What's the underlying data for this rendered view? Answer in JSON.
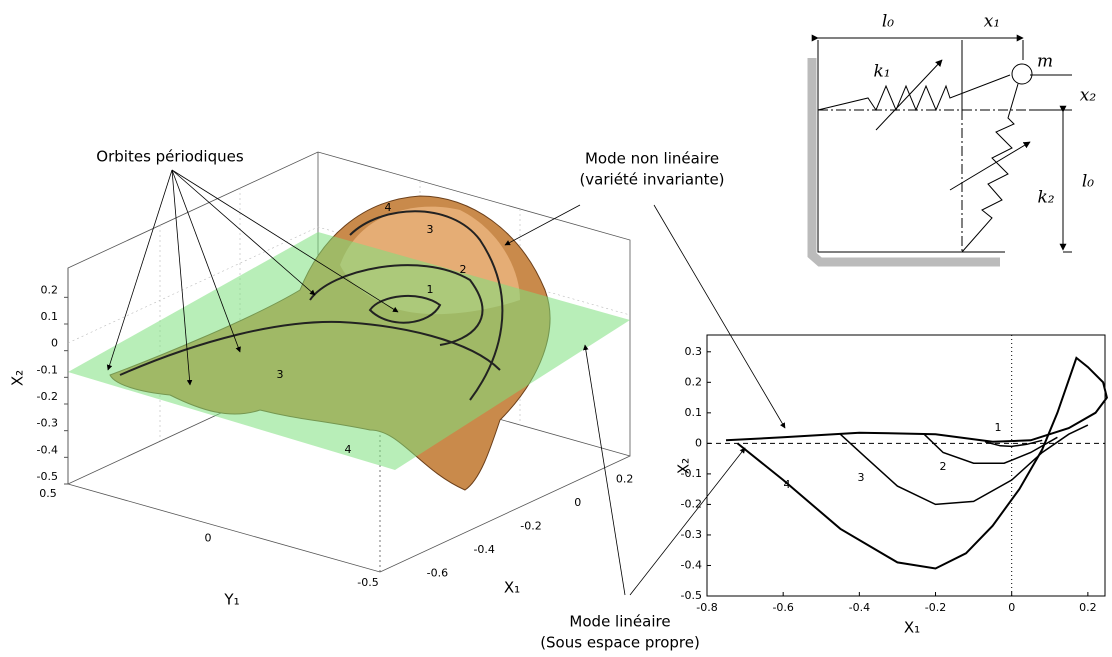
{
  "chart_data": [
    {
      "type": "surface",
      "zlabel": "X₂",
      "ylabel": "Y₁",
      "xlabel": "X₁",
      "zlim": [
        -0.5,
        0.25
      ],
      "zticks": [
        0.2,
        0.1,
        0,
        -0.1,
        -0.2,
        -0.3,
        -0.4,
        -0.5
      ],
      "ylim": [
        -0.5,
        0.5
      ],
      "yticks": [
        0.5,
        0,
        -0.5
      ],
      "xlim": [
        -0.7,
        0.3
      ],
      "xticks": [
        0.2,
        0,
        -0.2,
        -0.4,
        -0.6
      ],
      "curve_labels": [
        "4",
        "3",
        "2",
        "1",
        "3",
        "4"
      ]
    },
    {
      "type": "line",
      "xlabel": "X₁",
      "ylabel": "X₂",
      "xlim": [
        -0.8,
        0.245
      ],
      "xticks": [
        -0.8,
        -0.6,
        -0.4,
        -0.2,
        0,
        0.2
      ],
      "ylim": [
        -0.5,
        0.355
      ],
      "yticks": [
        0.3,
        0.2,
        0.1,
        0,
        -0.1,
        -0.2,
        -0.3,
        -0.4,
        -0.5
      ],
      "series": [
        {
          "name": "4",
          "color": "#000000",
          "x": [
            -0.75,
            -0.6,
            -0.4,
            -0.2,
            -0.05,
            0.05,
            0.15,
            0.22,
            0.25,
            0.24,
            0.2,
            0.17,
            0.12,
            0.08,
            0.02,
            -0.05,
            -0.12,
            -0.2,
            -0.3,
            -0.45,
            -0.6,
            -0.72
          ],
          "values": [
            0.01,
            0.02,
            0.035,
            0.03,
            0.005,
            0.01,
            0.05,
            0.1,
            0.15,
            0.2,
            0.25,
            0.28,
            0.1,
            -0.02,
            -0.15,
            -0.27,
            -0.36,
            -0.41,
            -0.39,
            -0.28,
            -0.12,
            0.0
          ]
        },
        {
          "name": "3",
          "color": "#000000",
          "x": [
            -0.45,
            -0.38,
            -0.3,
            -0.2,
            -0.1,
            0.0,
            0.08,
            0.15,
            0.2
          ],
          "values": [
            0.03,
            -0.05,
            -0.14,
            -0.2,
            -0.19,
            -0.12,
            -0.03,
            0.03,
            0.06
          ]
        },
        {
          "name": "2",
          "color": "#000000",
          "x": [
            -0.23,
            -0.18,
            -0.1,
            -0.02,
            0.05,
            0.12
          ],
          "values": [
            0.03,
            -0.03,
            -0.065,
            -0.065,
            -0.03,
            0.02
          ]
        },
        {
          "name": "1",
          "color": "#000000",
          "x": [
            -0.07,
            -0.03,
            0.0,
            0.04,
            0.08
          ],
          "values": [
            0.005,
            -0.008,
            -0.01,
            -0.003,
            0.01
          ]
        }
      ]
    }
  ],
  "annotations": {
    "orbits": "Orbites périodiques",
    "nonlinear_mode": "Mode non linéaire",
    "nonlinear_sub": "(variété invariante)",
    "linear_mode": "Mode linéaire",
    "linear_sub": "(Sous espace propre)"
  },
  "diagram": {
    "l0_top": "l₀",
    "x1": "x₁",
    "m": "m",
    "k1": "k₁",
    "x2": "x₂",
    "k2": "k₂",
    "l0_right": "l₀"
  }
}
